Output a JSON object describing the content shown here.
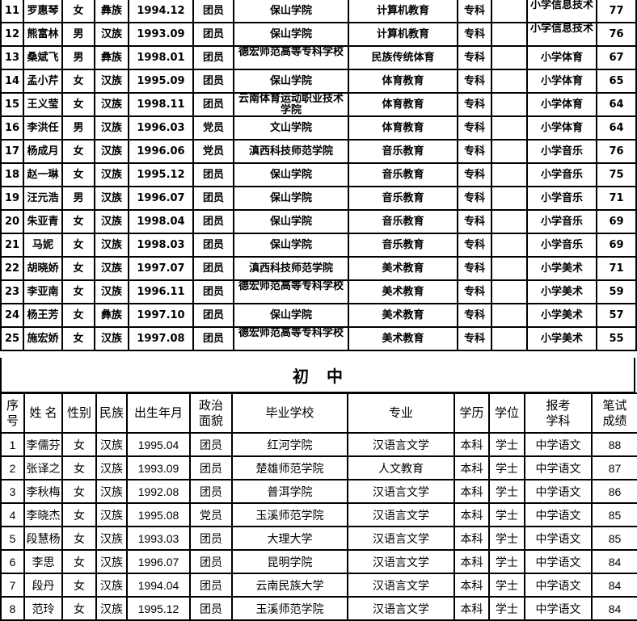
{
  "primary_rows": [
    [
      "11",
      "罗惠琴",
      "女",
      "彝族",
      "1994.12",
      "团员",
      "保山学院",
      "计算机教育",
      "专科",
      "",
      "小学信息技术",
      "77"
    ],
    [
      "12",
      "熊富林",
      "男",
      "汉族",
      "1993.09",
      "团员",
      "保山学院",
      "计算机教育",
      "专科",
      "",
      "小学信息技术",
      "76"
    ],
    [
      "13",
      "桑斌飞",
      "男",
      "彝族",
      "1998.01",
      "团员",
      "德宏师范高等专科学校",
      "民族传统体育",
      "专科",
      "",
      "小学体育",
      "67"
    ],
    [
      "14",
      "孟小芹",
      "女",
      "汉族",
      "1995.09",
      "团员",
      "保山学院",
      "体育教育",
      "专科",
      "",
      "小学体育",
      "65"
    ],
    [
      "15",
      "王义莹",
      "女",
      "汉族",
      "1998.11",
      "团员",
      "云南体育运动职业技术学院",
      "体育教育",
      "专科",
      "",
      "小学体育",
      "64"
    ],
    [
      "16",
      "李洪任",
      "男",
      "汉族",
      "1996.03",
      "党员",
      "文山学院",
      "体育教育",
      "专科",
      "",
      "小学体育",
      "64"
    ],
    [
      "17",
      "杨成月",
      "女",
      "汉族",
      "1996.06",
      "党员",
      "滇西科技师范学院",
      "音乐教育",
      "专科",
      "",
      "小学音乐",
      "76"
    ],
    [
      "18",
      "赵一琳",
      "女",
      "汉族",
      "1995.12",
      "团员",
      "保山学院",
      "音乐教育",
      "专科",
      "",
      "小学音乐",
      "75"
    ],
    [
      "19",
      "汪元浩",
      "男",
      "汉族",
      "1996.07",
      "团员",
      "保山学院",
      "音乐教育",
      "专科",
      "",
      "小学音乐",
      "71"
    ],
    [
      "20",
      "朱亚青",
      "女",
      "汉族",
      "1998.04",
      "团员",
      "保山学院",
      "音乐教育",
      "专科",
      "",
      "小学音乐",
      "69"
    ],
    [
      "21",
      "马妮",
      "女",
      "汉族",
      "1998.03",
      "团员",
      "保山学院",
      "音乐教育",
      "专科",
      "",
      "小学音乐",
      "69"
    ],
    [
      "22",
      "胡晓娇",
      "女",
      "汉族",
      "1997.07",
      "团员",
      "滇西科技师范学院",
      "美术教育",
      "专科",
      "",
      "小学美术",
      "71"
    ],
    [
      "23",
      "李亚南",
      "女",
      "汉族",
      "1996.11",
      "团员",
      "德宏师范高等专科学校",
      "美术教育",
      "专科",
      "",
      "小学美术",
      "59"
    ],
    [
      "24",
      "杨王芳",
      "女",
      "彝族",
      "1997.10",
      "团员",
      "保山学院",
      "美术教育",
      "专科",
      "",
      "小学美术",
      "57"
    ],
    [
      "25",
      "施宏娇",
      "女",
      "汉族",
      "1997.08",
      "团员",
      "德宏师范高等专科学校",
      "美术教育",
      "专科",
      "",
      "小学美术",
      "55"
    ]
  ],
  "section_title": "初中",
  "headers": [
    "序号",
    "姓 名",
    "性别",
    "民族",
    "出生年月",
    "政治面貌",
    "毕业学校",
    "专业",
    "学历",
    "学位",
    "报考学科",
    "笔试成绩"
  ],
  "middle_rows": [
    [
      "1",
      "李儒芬",
      "女",
      "汉族",
      "1995.04",
      "团员",
      "红河学院",
      "汉语言文学",
      "本科",
      "学士",
      "中学语文",
      "88"
    ],
    [
      "2",
      "张译之",
      "女",
      "汉族",
      "1993.09",
      "团员",
      "楚雄师范学院",
      "人文教育",
      "本科",
      "学士",
      "中学语文",
      "87"
    ],
    [
      "3",
      "李秋梅",
      "女",
      "汉族",
      "1992.08",
      "团员",
      "普洱学院",
      "汉语言文学",
      "本科",
      "学士",
      "中学语文",
      "86"
    ],
    [
      "4",
      "李晓杰",
      "女",
      "汉族",
      "1995.08",
      "党员",
      "玉溪师范学院",
      "汉语言文学",
      "本科",
      "学士",
      "中学语文",
      "85"
    ],
    [
      "5",
      "段慧杨",
      "女",
      "汉族",
      "1993.03",
      "团员",
      "大理大学",
      "汉语言文学",
      "本科",
      "学士",
      "中学语文",
      "85"
    ],
    [
      "6",
      "李思",
      "女",
      "汉族",
      "1996.07",
      "团员",
      "昆明学院",
      "汉语言文学",
      "本科",
      "学士",
      "中学语文",
      "84"
    ],
    [
      "7",
      "段丹",
      "女",
      "汉族",
      "1994.04",
      "团员",
      "云南民族大学",
      "汉语言文学",
      "本科",
      "学士",
      "中学语文",
      "84"
    ],
    [
      "8",
      "范玲",
      "女",
      "汉族",
      "1995.12",
      "团员",
      "玉溪师范学院",
      "汉语言文学",
      "本科",
      "学士",
      "中学语文",
      "84"
    ]
  ]
}
